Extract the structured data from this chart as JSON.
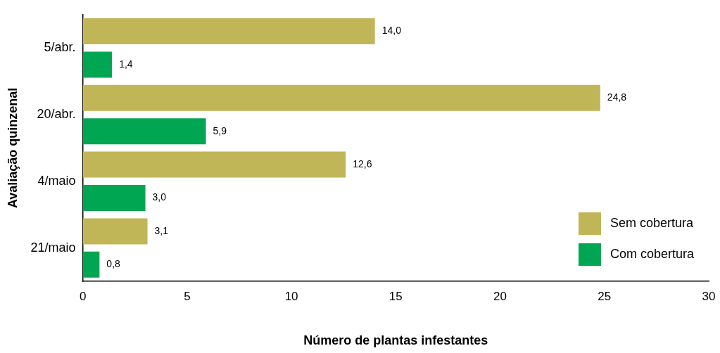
{
  "chart_data": {
    "type": "bar",
    "orientation": "horizontal",
    "xlabel": "Número de plantas infestantes",
    "ylabel": "Avaliação quinzenal",
    "categories": [
      "5/abr.",
      "20/abr.",
      "4/maio",
      "21/maio"
    ],
    "series": [
      {
        "name": "Sem cobertura",
        "color": "#c0b657",
        "values": [
          14.0,
          24.8,
          12.6,
          3.1
        ],
        "value_labels": [
          "14,0",
          "24,8",
          "12,6",
          "3,1"
        ]
      },
      {
        "name": "Com cobertura",
        "color": "#00a651",
        "values": [
          1.4,
          5.9,
          3.0,
          0.8
        ],
        "value_labels": [
          "1,4",
          "5,9",
          "3,0",
          "0,8"
        ]
      }
    ],
    "xlim": [
      0,
      30
    ],
    "xticks": [
      0,
      5,
      10,
      15,
      20,
      25,
      30
    ],
    "grid": false,
    "legend": "bottom right"
  }
}
